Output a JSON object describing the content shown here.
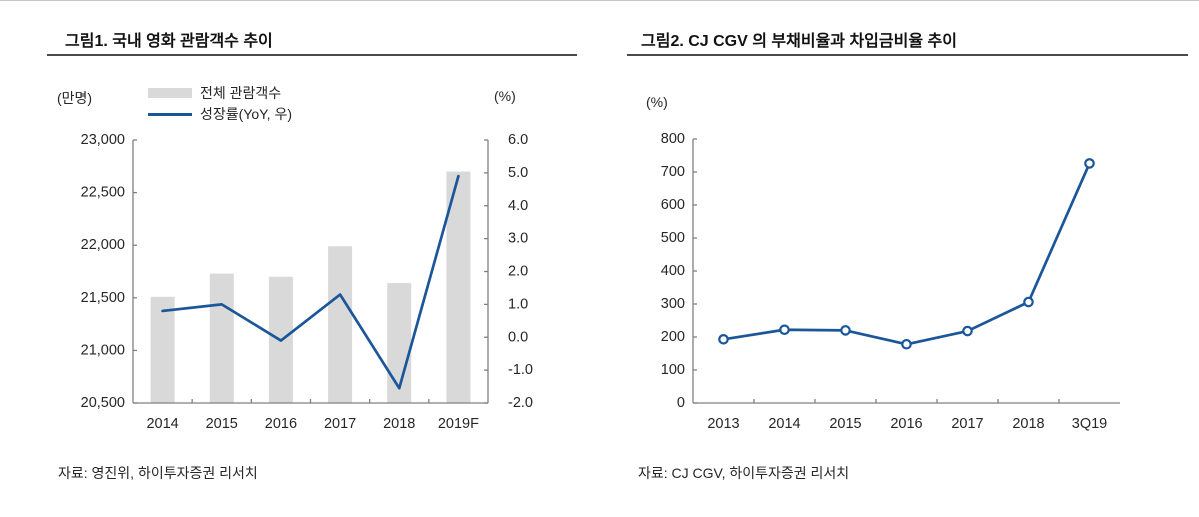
{
  "figure1": {
    "title": "그림1. 국내 영화 관람객수 추이",
    "unit_left": "(만명)",
    "unit_right": "(%)",
    "legend": {
      "bar_label": "전체 관람객수",
      "line_label": "성장률(YoY, 우)"
    },
    "source": "자료: 영진위, 하이투자증권 리서치"
  },
  "figure2": {
    "title": "그림2. CJ CGV 의 부채비율과 차입금비율 추이",
    "unit": "(%)",
    "source": "자료: CJ CGV, 하이투자증권 리서치"
  },
  "colors": {
    "bar": "#d9d9d9",
    "line": "#1a5699",
    "axis": "#808080",
    "text": "#262626"
  },
  "chart_data": [
    {
      "type": "bar",
      "title": "그림1. 국내 영화 관람객수 추이",
      "categories": [
        "2014",
        "2015",
        "2016",
        "2017",
        "2018",
        "2019F"
      ],
      "series": [
        {
          "name": "전체 관람객수",
          "type": "bar",
          "axis": "left",
          "values": [
            21510,
            21730,
            21700,
            21990,
            21640,
            22700
          ]
        },
        {
          "name": "성장률(YoY, 우)",
          "type": "line",
          "axis": "right",
          "values": [
            0.8,
            1.0,
            -0.1,
            1.3,
            -1.55,
            4.9
          ]
        }
      ],
      "y_left": {
        "label": "(만명)",
        "min": 20500,
        "max": 23000,
        "step": 500,
        "format": "thousands"
      },
      "y_right": {
        "label": "(%)",
        "min": -2.0,
        "max": 6.0,
        "step": 1.0,
        "format": "decimal1"
      },
      "legend_position": "top",
      "grid": false,
      "xlabel": "",
      "ylabel": ""
    },
    {
      "type": "line",
      "title": "그림2. CJ CGV 의 부채비율과 차입금비율 추이",
      "categories": [
        "2013",
        "2014",
        "2015",
        "2016",
        "2017",
        "2018",
        "3Q19"
      ],
      "series": [
        {
          "name": "부채비율",
          "type": "line",
          "marker": "circle",
          "values": [
            193,
            222,
            220,
            178,
            218,
            306,
            726
          ]
        }
      ],
      "y": {
        "label": "(%)",
        "min": 0,
        "max": 800,
        "step": 100,
        "format": "integer"
      },
      "grid": false,
      "xlabel": "",
      "ylabel": ""
    }
  ]
}
